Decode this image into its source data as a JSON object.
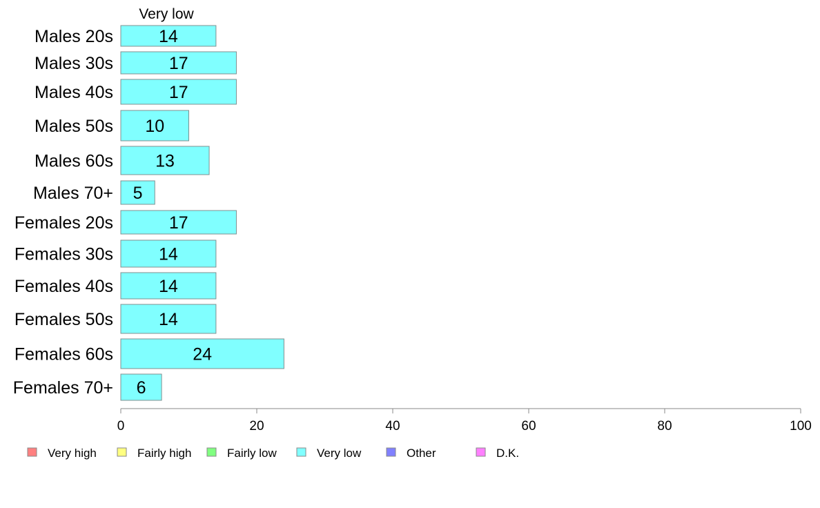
{
  "chart_data": {
    "type": "bar",
    "orientation": "horizontal",
    "stacked": true,
    "categories": [
      "Males 20s",
      "Males 30s",
      "Males 40s",
      "Males 50s",
      "Males 60s",
      "Males 70+",
      "Females 20s",
      "Females 30s",
      "Females 40s",
      "Females 50s",
      "Females 60s",
      "Females 70+"
    ],
    "series": [
      {
        "name": "Very low",
        "color": "#80ffff",
        "values": [
          14,
          17,
          17,
          10,
          13,
          5,
          17,
          14,
          14,
          14,
          24,
          6
        ]
      }
    ],
    "series_header": "Very low",
    "xlim": [
      0,
      100
    ],
    "x_ticks": [
      "0",
      "20",
      "40",
      "60",
      "80",
      "100"
    ],
    "grid": false,
    "legend_position": "bottom",
    "legend": [
      {
        "label": "Very high",
        "color": "#ff8080"
      },
      {
        "label": "Fairly high",
        "color": "#ffff80"
      },
      {
        "label": "Fairly low",
        "color": "#80ff80"
      },
      {
        "label": "Very low",
        "color": "#80ffff"
      },
      {
        "label": "Other",
        "color": "#8080ff"
      },
      {
        "label": "D.K.",
        "color": "#ff80ff"
      }
    ]
  }
}
